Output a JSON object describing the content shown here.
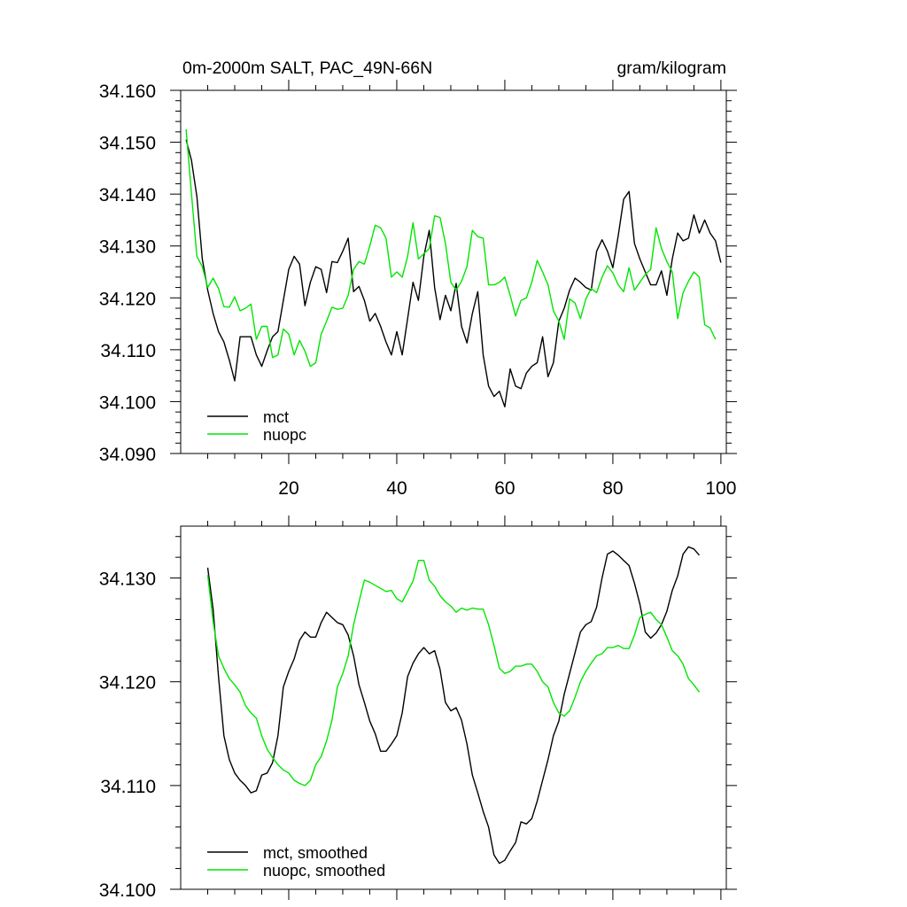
{
  "chart_data": [
    {
      "type": "line",
      "title_left": "0m-2000m SALT, PAC_49N-66N",
      "title_right": "gram/kilogram",
      "xlabel": "",
      "ylabel": "",
      "xlim": [
        0,
        101
      ],
      "ylim": [
        34.09,
        34.16
      ],
      "x_start": 1,
      "yticks": [
        34.09,
        34.1,
        34.11,
        34.12,
        34.13,
        34.14,
        34.15,
        34.16
      ],
      "ytick_labels": [
        "34.090",
        "34.100",
        "34.110",
        "34.120",
        "34.130",
        "34.140",
        "34.150",
        "34.160"
      ],
      "xticks": [
        20,
        40,
        60,
        80,
        100
      ],
      "xtick_labels": [
        "20",
        "40",
        "60",
        "80",
        "100"
      ],
      "legend_position": "bottom-left",
      "series": [
        {
          "name": "mct",
          "color": "#000000",
          "values": [
            34.1505,
            34.1465,
            34.1395,
            34.1275,
            34.1215,
            34.117,
            34.1135,
            34.1115,
            34.108,
            34.104,
            34.1125,
            34.1125,
            34.1125,
            34.109,
            34.1068,
            34.1098,
            34.1125,
            34.1135,
            34.1195,
            34.1255,
            34.128,
            34.1265,
            34.1185,
            34.123,
            34.126,
            34.1255,
            34.121,
            34.127,
            34.1268,
            34.129,
            34.1315,
            34.1212,
            34.1222,
            34.1195,
            34.1155,
            34.117,
            34.1145,
            34.1115,
            34.109,
            34.1135,
            34.109,
            34.116,
            34.123,
            34.1195,
            34.128,
            34.133,
            34.122,
            34.1158,
            34.1205,
            34.1175,
            34.1228,
            34.1145,
            34.1113,
            34.117,
            34.1212,
            34.109,
            34.103,
            34.101,
            34.102,
            34.099,
            34.1063,
            34.103,
            34.1025,
            34.1055,
            34.1068,
            34.1075,
            34.1125,
            34.1048,
            34.1075,
            34.1155,
            34.118,
            34.1215,
            34.1238,
            34.123,
            34.122,
            34.1215,
            34.129,
            34.1312,
            34.129,
            34.1258,
            34.132,
            34.139,
            34.1405,
            34.1305,
            34.1275,
            34.125,
            34.1225,
            34.1225,
            34.1252,
            34.1205,
            34.1275,
            34.1325,
            34.131,
            34.1315,
            34.136,
            34.1325,
            34.135,
            34.1325,
            34.131,
            34.1268
          ]
        },
        {
          "name": "nuopc",
          "color": "#00e600",
          "values": [
            34.1525,
            34.14,
            34.128,
            34.126,
            34.122,
            34.1238,
            34.1218,
            34.1183,
            34.1182,
            34.1202,
            34.1175,
            34.118,
            34.1188,
            34.112,
            34.1145,
            34.1145,
            34.1085,
            34.109,
            34.114,
            34.113,
            34.109,
            34.1118,
            34.1097,
            34.1068,
            34.1075,
            34.113,
            34.1155,
            34.1182,
            34.1178,
            34.118,
            34.1205,
            34.1255,
            34.127,
            34.1265,
            34.13,
            34.134,
            34.1335,
            34.1315,
            34.124,
            34.125,
            34.124,
            34.128,
            34.1345,
            34.1275,
            34.1285,
            34.1295,
            34.1358,
            34.1355,
            34.1305,
            34.123,
            34.1215,
            34.1232,
            34.126,
            34.133,
            34.1318,
            34.1315,
            34.1225,
            34.1225,
            34.123,
            34.124,
            34.1205,
            34.1165,
            34.1195,
            34.12,
            34.123,
            34.1272,
            34.125,
            34.1225,
            34.1175,
            34.1155,
            34.112,
            34.1198,
            34.119,
            34.116,
            34.1198,
            34.1218,
            34.121,
            34.124,
            34.1262,
            34.1248,
            34.1225,
            34.1212,
            34.1258,
            34.1215,
            34.123,
            34.1245,
            34.1255,
            34.1335,
            34.1295,
            34.127,
            34.125,
            34.116,
            34.121,
            34.1232,
            34.125,
            34.124,
            34.1148,
            34.1142,
            34.112
          ]
        }
      ]
    },
    {
      "type": "line",
      "xlabel": "",
      "ylabel": "",
      "xlim": [
        0,
        101
      ],
      "ylim": [
        34.1,
        34.135
      ],
      "x_start": 5,
      "yticks": [
        34.1,
        34.11,
        34.12,
        34.13
      ],
      "ytick_labels": [
        "34.100",
        "34.110",
        "34.120",
        "34.130"
      ],
      "xticks": [
        20,
        40,
        60,
        80,
        100
      ],
      "legend_position": "bottom-left",
      "series": [
        {
          "name": "mct, smoothed",
          "color": "#000000",
          "values": [
            34.131,
            34.127,
            34.1205,
            34.1148,
            34.1125,
            34.1112,
            34.1105,
            34.11,
            34.1093,
            34.1095,
            34.111,
            34.1112,
            34.1122,
            34.1148,
            34.1195,
            34.121,
            34.1222,
            34.124,
            34.1248,
            34.1243,
            34.1243,
            34.1257,
            34.1267,
            34.1262,
            34.1257,
            34.1255,
            34.1245,
            34.1225,
            34.1197,
            34.118,
            34.1162,
            34.115,
            34.1133,
            34.1133,
            34.114,
            34.1148,
            34.117,
            34.1205,
            34.1218,
            34.1227,
            34.1233,
            34.1227,
            34.123,
            34.1212,
            34.118,
            34.1172,
            34.1175,
            34.1163,
            34.114,
            34.111,
            34.1093,
            34.1075,
            34.106,
            34.1033,
            34.1025,
            34.1028,
            34.1037,
            34.1045,
            34.1065,
            34.1063,
            34.1068,
            34.1085,
            34.1105,
            34.1125,
            34.1148,
            34.1162,
            34.1188,
            34.1208,
            34.1228,
            34.1248,
            34.1255,
            34.1258,
            34.1272,
            34.13,
            34.1323,
            34.1326,
            34.1322,
            34.1317,
            34.1312,
            34.1295,
            34.1275,
            34.1248,
            34.1242,
            34.1247,
            34.1255,
            34.1268,
            34.1288,
            34.1302,
            34.1323,
            34.133,
            34.1328,
            34.1322
          ]
        },
        {
          "name": "nuopc, smoothed",
          "color": "#00e600",
          "values": [
            34.1303,
            34.1258,
            34.1225,
            34.1213,
            34.1203,
            34.1197,
            34.119,
            34.1177,
            34.117,
            34.1165,
            34.1148,
            34.1135,
            34.1127,
            34.112,
            34.1115,
            34.1112,
            34.1105,
            34.1102,
            34.11,
            34.1105,
            34.112,
            34.1128,
            34.1143,
            34.1163,
            34.1195,
            34.1208,
            34.1225,
            34.1255,
            34.1277,
            34.1298,
            34.1296,
            34.1293,
            34.129,
            34.1287,
            34.1288,
            34.128,
            34.1277,
            34.1287,
            34.1297,
            34.1317,
            34.1317,
            34.1298,
            34.1292,
            34.1283,
            34.1277,
            34.1273,
            34.1267,
            34.1271,
            34.1269,
            34.1271,
            34.127,
            34.127,
            34.1255,
            34.1235,
            34.1213,
            34.1208,
            34.121,
            34.1215,
            34.1215,
            34.1217,
            34.1217,
            34.121,
            34.12,
            34.1195,
            34.118,
            34.117,
            34.1167,
            34.1172,
            34.1185,
            34.12,
            34.121,
            34.1218,
            34.1225,
            34.1227,
            34.1233,
            34.1233,
            34.1235,
            34.1232,
            34.1232,
            34.1245,
            34.1262,
            34.1265,
            34.1267,
            34.126,
            34.1255,
            34.1243,
            34.123,
            34.1225,
            34.1217,
            34.1203,
            34.1197,
            34.119
          ]
        }
      ]
    }
  ]
}
